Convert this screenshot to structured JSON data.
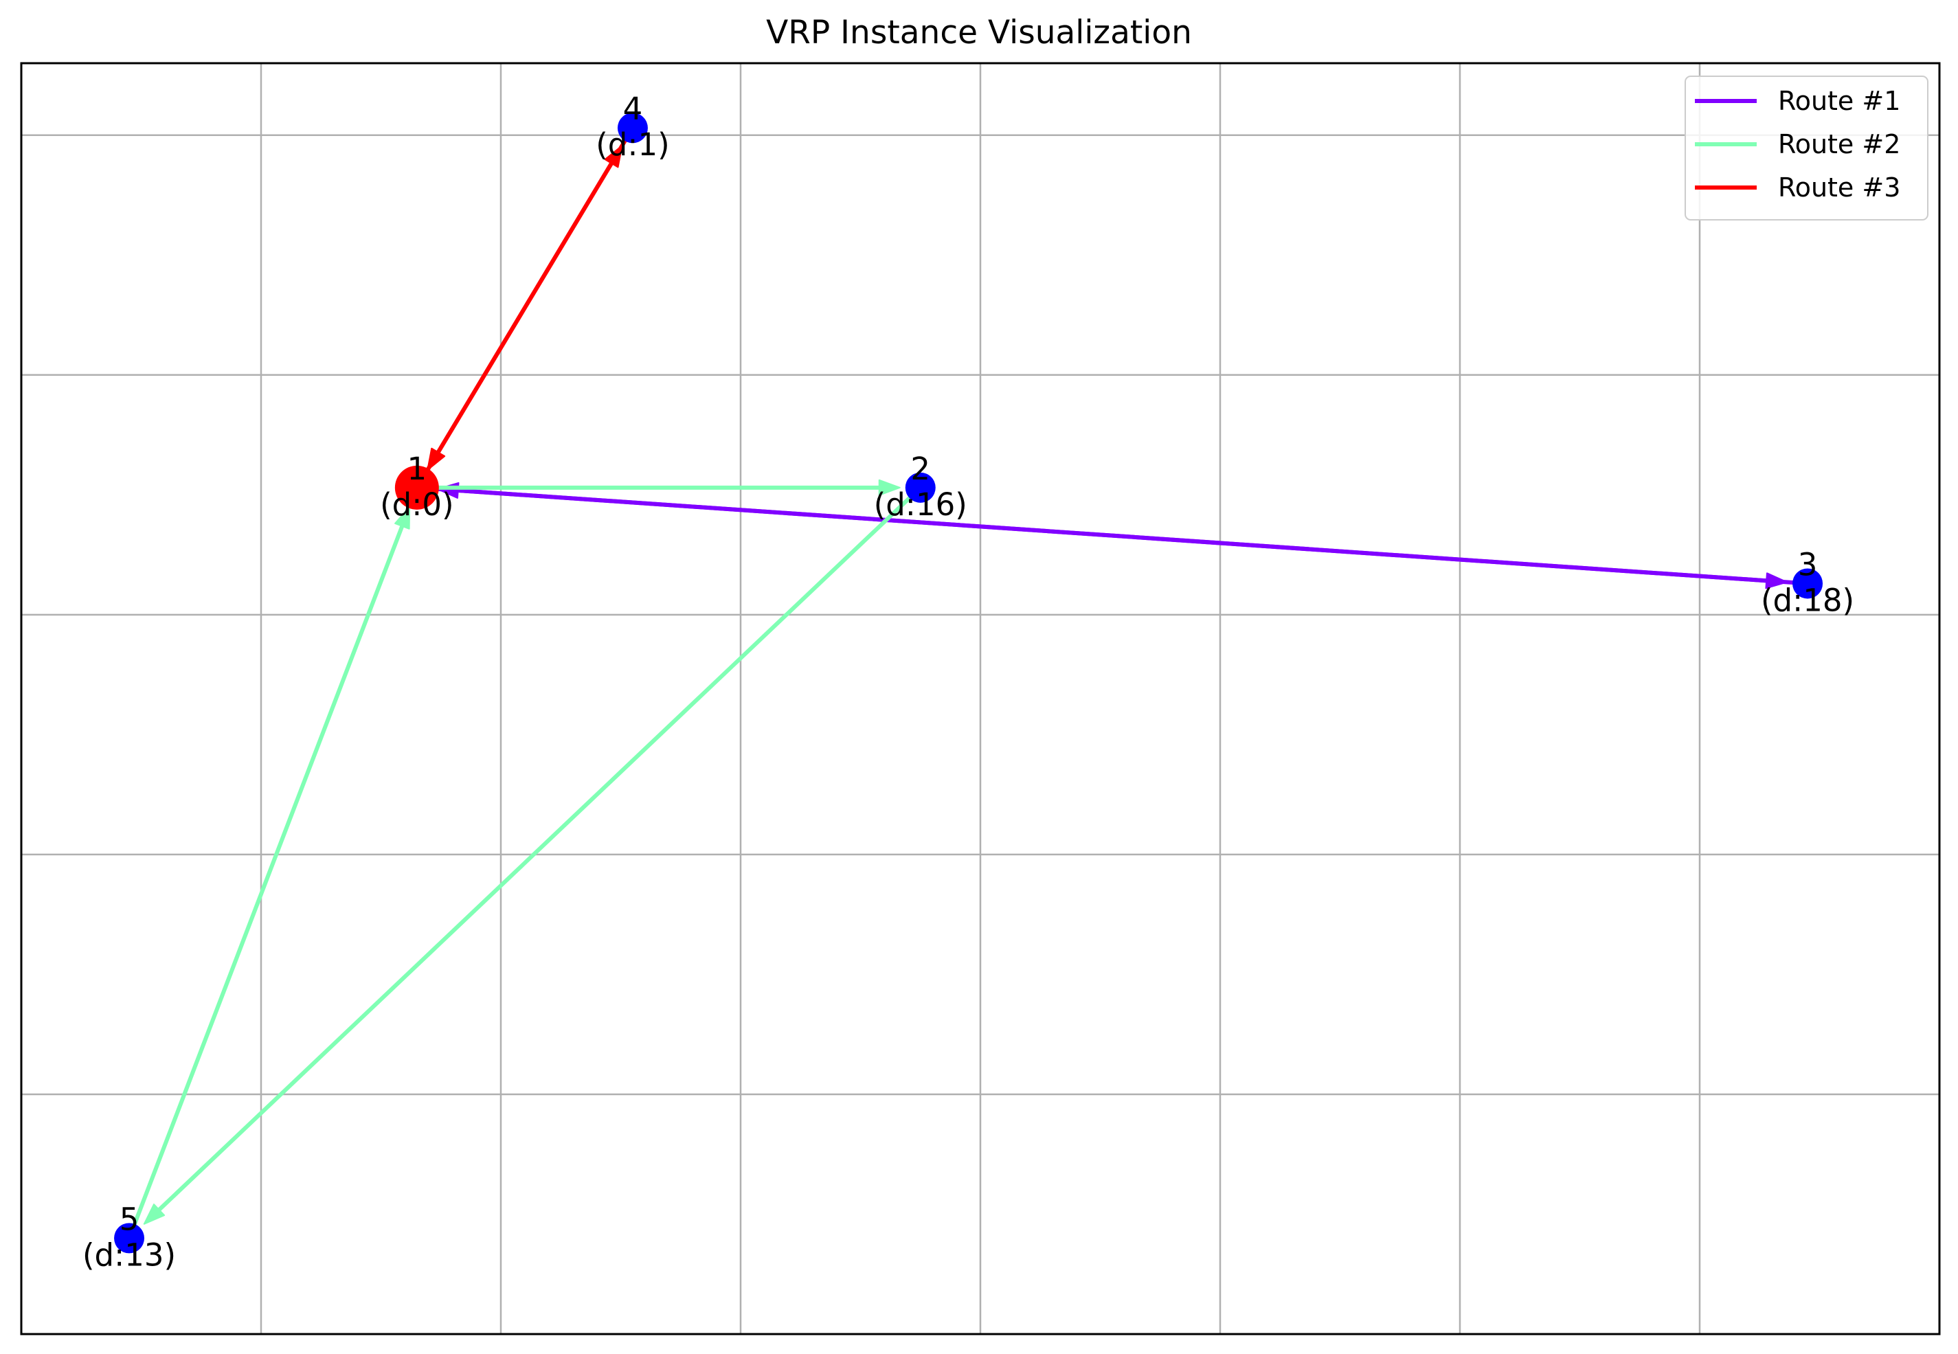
{
  "chart_data": {
    "type": "scatter",
    "title": "VRP Instance Visualization",
    "xlabel": "",
    "ylabel": "",
    "xlim": [
      0,
      80
    ],
    "ylim": [
      0,
      53
    ],
    "grid": true,
    "legend_position": "top-right",
    "nodes": [
      {
        "id": "1",
        "label": "1",
        "demand_label": "(d:0)",
        "x": 16.5,
        "y": 35.3,
        "color": "#ff0000",
        "depot": true
      },
      {
        "id": "2",
        "label": "2",
        "demand_label": "(d:16)",
        "x": 37.5,
        "y": 35.3,
        "color": "#0000ff",
        "depot": false
      },
      {
        "id": "3",
        "label": "3",
        "demand_label": "(d:18)",
        "x": 74.5,
        "y": 31.3,
        "color": "#0000ff",
        "depot": false
      },
      {
        "id": "4",
        "label": "4",
        "demand_label": "(d:1)",
        "x": 25.5,
        "y": 50.3,
        "color": "#0000ff",
        "depot": false
      },
      {
        "id": "5",
        "label": "5",
        "demand_label": "(d:13)",
        "x": 4.5,
        "y": 4.0,
        "color": "#0000ff",
        "depot": false
      }
    ],
    "series": [
      {
        "name": "Route #1",
        "color": "#8000ff",
        "stops": [
          "1",
          "3",
          "1"
        ]
      },
      {
        "name": "Route #2",
        "color": "#80ffb4",
        "stops": [
          "1",
          "2",
          "5",
          "1"
        ]
      },
      {
        "name": "Route #3",
        "color": "#ff0000",
        "stops": [
          "1",
          "4",
          "1"
        ]
      }
    ]
  }
}
